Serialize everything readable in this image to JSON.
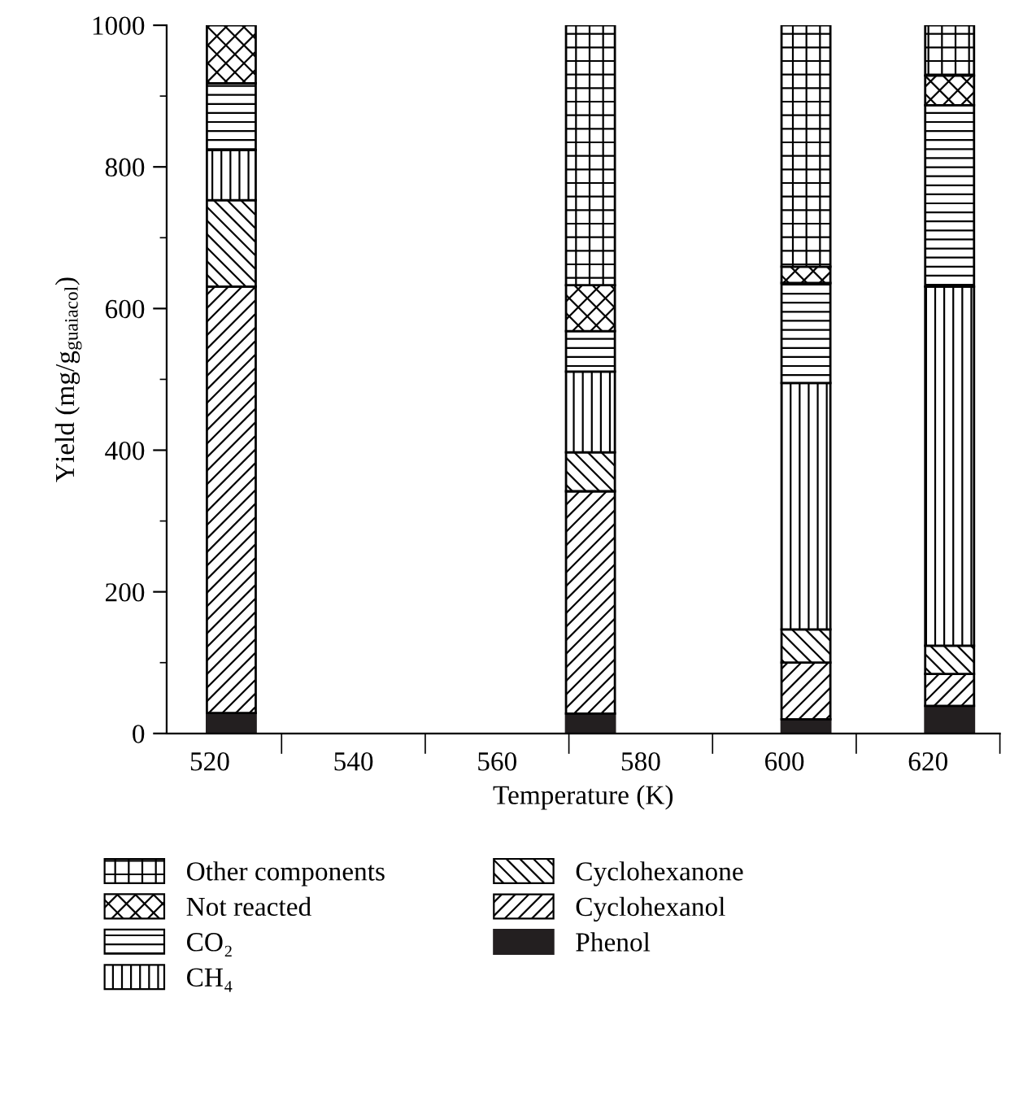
{
  "chart_data": {
    "type": "bar",
    "stacked": true,
    "xlabel": "Temperature (K)",
    "ylabel": "Yield (mg/g$_{guaiacol}$)",
    "x": [
      523,
      573,
      603,
      623
    ],
    "series": [
      {
        "name": "Phenol",
        "color": "#231f20",
        "values": [
          29,
          28,
          20,
          39
        ]
      },
      {
        "name": "Cyclohexanol",
        "color": "#000000",
        "values": [
          602,
          314,
          80,
          45
        ]
      },
      {
        "name": "Cyclohexanone",
        "color": "#000000",
        "values": [
          122,
          55,
          47,
          40
        ]
      },
      {
        "name": "CH₄",
        "color": "#000000",
        "values": [
          71,
          114,
          348,
          507
        ]
      },
      {
        "name": "CO₂",
        "color": "#000000",
        "values": [
          94,
          57,
          141,
          256
        ]
      },
      {
        "name": "Not reacted",
        "color": "#000000",
        "values": [
          82,
          65,
          23,
          42
        ]
      },
      {
        "name": "Other components",
        "color": "#000000",
        "values": [
          null,
          367,
          341,
          71
        ]
      }
    ],
    "xlim": [
      514,
      630
    ],
    "xticks": [
      520,
      540,
      560,
      580,
      600,
      620,
      {
        "value": 530,
        "label": null
      },
      {
        "value": 550,
        "label": null
      },
      {
        "value": 570,
        "label": null
      },
      {
        "value": 590,
        "label": null
      },
      {
        "value": 610,
        "label": null
      },
      {
        "value": 630,
        "label": null
      }
    ],
    "ylim": [
      0,
      1000
    ],
    "yticks": [
      0,
      200,
      400,
      600,
      800,
      1000,
      {
        "value": 100,
        "label": null
      },
      {
        "value": 300,
        "label": null
      },
      {
        "value": 500,
        "label": null
      },
      {
        "value": 700,
        "label": null
      },
      {
        "value": 900,
        "label": null
      }
    ],
    "grid": false,
    "legend": "bottom"
  }
}
